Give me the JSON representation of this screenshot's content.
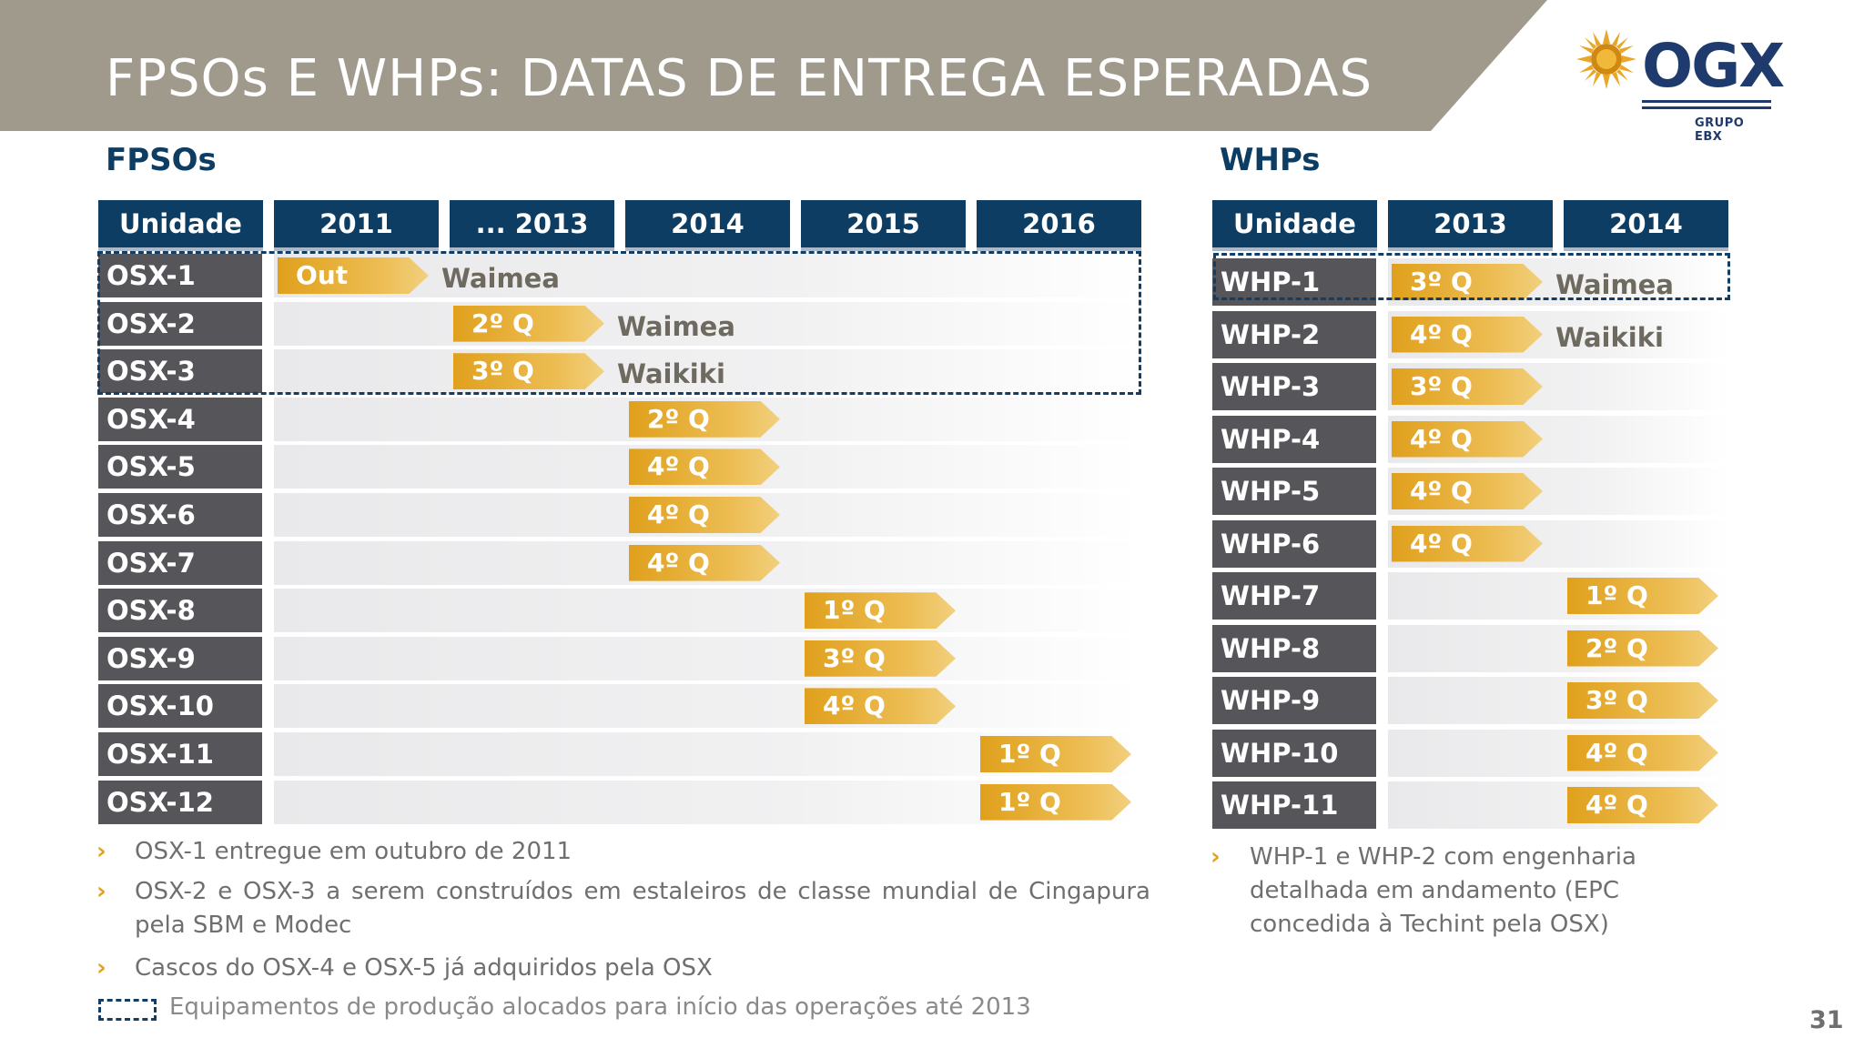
{
  "title": "FPSOs E WHPs: DATAS DE ENTREGA ESPERADAS",
  "logo": {
    "text": "OGX",
    "subtext": "GRUPO EBX"
  },
  "fpso": {
    "section_title": "FPSOs",
    "headers": [
      "Unidade",
      "2011",
      "... 2013",
      "2014",
      "2015",
      "2016"
    ],
    "rows": [
      {
        "unit": "OSX-1",
        "col": 0,
        "quarter": "Out",
        "field": "Waimea"
      },
      {
        "unit": "OSX-2",
        "col": 1,
        "quarter": "2º Q",
        "field": "Waimea"
      },
      {
        "unit": "OSX-3",
        "col": 1,
        "quarter": "3º Q",
        "field": "Waikiki"
      },
      {
        "unit": "OSX-4",
        "col": 2,
        "quarter": "2º Q",
        "field": ""
      },
      {
        "unit": "OSX-5",
        "col": 2,
        "quarter": "4º Q",
        "field": ""
      },
      {
        "unit": "OSX-6",
        "col": 2,
        "quarter": "4º Q",
        "field": ""
      },
      {
        "unit": "OSX-7",
        "col": 2,
        "quarter": "4º Q",
        "field": ""
      },
      {
        "unit": "OSX-8",
        "col": 3,
        "quarter": "1º Q",
        "field": ""
      },
      {
        "unit": "OSX-9",
        "col": 3,
        "quarter": "3º Q",
        "field": ""
      },
      {
        "unit": "OSX-10",
        "col": 3,
        "quarter": "4º Q",
        "field": ""
      },
      {
        "unit": "OSX-11",
        "col": 4,
        "quarter": "1º Q",
        "field": ""
      },
      {
        "unit": "OSX-12",
        "col": 4,
        "quarter": "1º Q",
        "field": ""
      }
    ],
    "bullets": [
      "OSX-1 entregue em outubro de 2011",
      "OSX-2 e OSX-3 a serem construídos em estaleiros de classe mundial de Cingapura pela SBM e Modec",
      "Cascos do OSX-4 e OSX-5 já adquiridos pela OSX"
    ]
  },
  "whp": {
    "section_title": "WHPs",
    "headers": [
      "Unidade",
      "2013",
      "2014"
    ],
    "rows": [
      {
        "unit": "WHP-1",
        "col": 0,
        "quarter": "3º Q",
        "field": "Waimea"
      },
      {
        "unit": "WHP-2",
        "col": 0,
        "quarter": "4º Q",
        "field": "Waikiki"
      },
      {
        "unit": "WHP-3",
        "col": 0,
        "quarter": "3º Q",
        "field": ""
      },
      {
        "unit": "WHP-4",
        "col": 0,
        "quarter": "4º Q",
        "field": ""
      },
      {
        "unit": "WHP-5",
        "col": 0,
        "quarter": "4º Q",
        "field": ""
      },
      {
        "unit": "WHP-6",
        "col": 0,
        "quarter": "4º Q",
        "field": ""
      },
      {
        "unit": "WHP-7",
        "col": 1,
        "quarter": "1º Q",
        "field": ""
      },
      {
        "unit": "WHP-8",
        "col": 1,
        "quarter": "2º Q",
        "field": ""
      },
      {
        "unit": "WHP-9",
        "col": 1,
        "quarter": "3º Q",
        "field": ""
      },
      {
        "unit": "WHP-10",
        "col": 1,
        "quarter": "4º Q",
        "field": ""
      },
      {
        "unit": "WHP-11",
        "col": 1,
        "quarter": "4º Q",
        "field": ""
      }
    ],
    "bullets": [
      "WHP-1 e WHP-2 com engenharia detalhada em andamento (EPC concedida à Techint pela OSX)"
    ]
  },
  "legend": "Equipamentos de produção alocados para início das operações até 2013",
  "page_number": "31",
  "colors": {
    "accent": "#e8a726",
    "header": "#0d3d63",
    "label_bg": "#56555a",
    "title_band": "#a09a8c"
  },
  "icons": {
    "bullet": "chevron-right-icon",
    "logo": "sun-icon"
  }
}
